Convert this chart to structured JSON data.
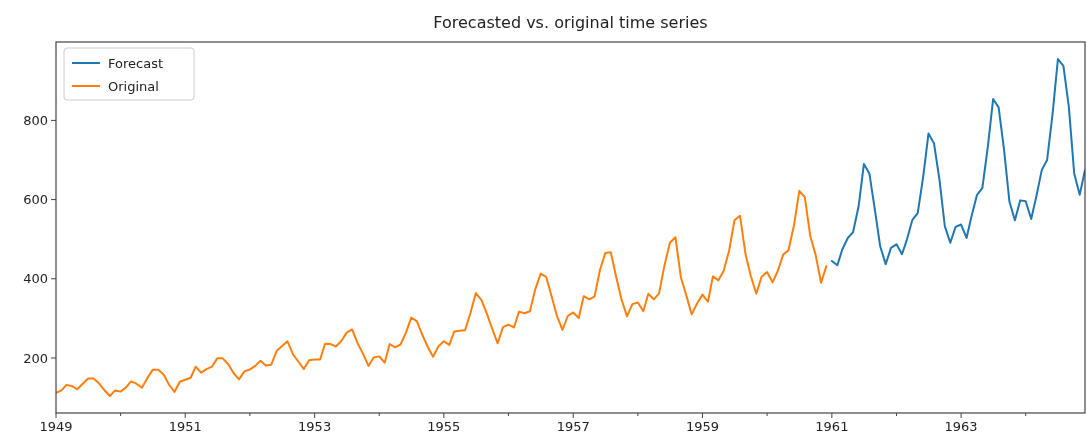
{
  "chart_data": {
    "type": "line",
    "title": "Forecasted vs. original time series",
    "xlim": [
      "1949-01",
      "1964-12"
    ],
    "ylim": [
      61,
      998
    ],
    "yticks": [
      200,
      400,
      600,
      800
    ],
    "xticks": [
      {
        "value": "1949",
        "label": "1949"
      },
      {
        "value": "1950",
        "label": null
      },
      {
        "value": "1951",
        "label": "1951"
      },
      {
        "value": "1952",
        "label": null
      },
      {
        "value": "1953",
        "label": "1953"
      },
      {
        "value": "1954",
        "label": null
      },
      {
        "value": "1955",
        "label": "1955"
      },
      {
        "value": "1956",
        "label": null
      },
      {
        "value": "1957",
        "label": "1957"
      },
      {
        "value": "1958",
        "label": null
      },
      {
        "value": "1959",
        "label": "1959"
      },
      {
        "value": "1960",
        "label": null
      },
      {
        "value": "1961",
        "label": "1961"
      },
      {
        "value": "1962",
        "label": null
      },
      {
        "value": "1963",
        "label": "1963"
      },
      {
        "value": "1964",
        "label": null
      }
    ],
    "legend": "top left",
    "grid": false,
    "series": [
      {
        "name": "Forecast",
        "color": "#1f77b4",
        "x": [
          "1961-01",
          "1961-02",
          "1961-03",
          "1961-04",
          "1961-05",
          "1961-06",
          "1961-07",
          "1961-08",
          "1961-09",
          "1961-10",
          "1961-11",
          "1961-12",
          "1962-01",
          "1962-02",
          "1962-03",
          "1962-04",
          "1962-05",
          "1962-06",
          "1962-07",
          "1962-08",
          "1962-09",
          "1962-10",
          "1962-11",
          "1962-12",
          "1963-01",
          "1963-02",
          "1963-03",
          "1963-04",
          "1963-05",
          "1963-06",
          "1963-07",
          "1963-08",
          "1963-09",
          "1963-10",
          "1963-11",
          "1963-12",
          "1964-01",
          "1964-02",
          "1964-03",
          "1964-04",
          "1964-05",
          "1964-06",
          "1964-07",
          "1964-08",
          "1964-09",
          "1964-10",
          "1964-11",
          "1964-12"
        ],
        "values": [
          445,
          434,
          474,
          503,
          518,
          583,
          690,
          666,
          574,
          482,
          437,
          478,
          487,
          462,
          499,
          549,
          566,
          658,
          767,
          742,
          650,
          533,
          491,
          531,
          537,
          503,
          558,
          612,
          629,
          733,
          854,
          833,
          725,
          595,
          548,
          598,
          596,
          551,
          608,
          675,
          700,
          817,
          955,
          938,
          833,
          666,
          612,
          675
        ]
      },
      {
        "name": "Original",
        "color": "#ff7f0e",
        "x": [
          "1949-01",
          "1949-02",
          "1949-03",
          "1949-04",
          "1949-05",
          "1949-06",
          "1949-07",
          "1949-08",
          "1949-09",
          "1949-10",
          "1949-11",
          "1949-12",
          "1950-01",
          "1950-02",
          "1950-03",
          "1950-04",
          "1950-05",
          "1950-06",
          "1950-07",
          "1950-08",
          "1950-09",
          "1950-10",
          "1950-11",
          "1950-12",
          "1951-01",
          "1951-02",
          "1951-03",
          "1951-04",
          "1951-05",
          "1951-06",
          "1951-07",
          "1951-08",
          "1951-09",
          "1951-10",
          "1951-11",
          "1951-12",
          "1952-01",
          "1952-02",
          "1952-03",
          "1952-04",
          "1952-05",
          "1952-06",
          "1952-07",
          "1952-08",
          "1952-09",
          "1952-10",
          "1952-11",
          "1952-12",
          "1953-01",
          "1953-02",
          "1953-03",
          "1953-04",
          "1953-05",
          "1953-06",
          "1953-07",
          "1953-08",
          "1953-09",
          "1953-10",
          "1953-11",
          "1953-12",
          "1954-01",
          "1954-02",
          "1954-03",
          "1954-04",
          "1954-05",
          "1954-06",
          "1954-07",
          "1954-08",
          "1954-09",
          "1954-10",
          "1954-11",
          "1954-12",
          "1955-01",
          "1955-02",
          "1955-03",
          "1955-04",
          "1955-05",
          "1955-06",
          "1955-07",
          "1955-08",
          "1955-09",
          "1955-10",
          "1955-11",
          "1955-12",
          "1956-01",
          "1956-02",
          "1956-03",
          "1956-04",
          "1956-05",
          "1956-06",
          "1956-07",
          "1956-08",
          "1956-09",
          "1956-10",
          "1956-11",
          "1956-12",
          "1957-01",
          "1957-02",
          "1957-03",
          "1957-04",
          "1957-05",
          "1957-06",
          "1957-07",
          "1957-08",
          "1957-09",
          "1957-10",
          "1957-11",
          "1957-12",
          "1958-01",
          "1958-02",
          "1958-03",
          "1958-04",
          "1958-05",
          "1958-06",
          "1958-07",
          "1958-08",
          "1958-09",
          "1958-10",
          "1958-11",
          "1958-12",
          "1959-01",
          "1959-02",
          "1959-03",
          "1959-04",
          "1959-05",
          "1959-06",
          "1959-07",
          "1959-08",
          "1959-09",
          "1959-10",
          "1959-11",
          "1959-12",
          "1960-01",
          "1960-02",
          "1960-03",
          "1960-04",
          "1960-05",
          "1960-06",
          "1960-07",
          "1960-08",
          "1960-09",
          "1960-10",
          "1960-11",
          "1960-12"
        ],
        "values": [
          112,
          118,
          132,
          129,
          121,
          135,
          148,
          148,
          136,
          119,
          104,
          118,
          115,
          126,
          141,
          135,
          125,
          149,
          170,
          170,
          158,
          133,
          114,
          140,
          145,
          150,
          178,
          163,
          172,
          178,
          199,
          199,
          184,
          162,
          146,
          166,
          171,
          180,
          193,
          181,
          183,
          218,
          230,
          242,
          209,
          191,
          172,
          194,
          196,
          196,
          236,
          235,
          229,
          243,
          264,
          272,
          237,
          211,
          180,
          201,
          204,
          188,
          235,
          227,
          234,
          264,
          302,
          293,
          259,
          229,
          203,
          229,
          242,
          233,
          267,
          269,
          270,
          315,
          364,
          347,
          312,
          274,
          237,
          278,
          284,
          277,
          317,
          313,
          318,
          374,
          413,
          405,
          355,
          306,
          271,
          306,
          315,
          301,
          356,
          348,
          355,
          422,
          465,
          467,
          404,
          347,
          305,
          336,
          340,
          318,
          362,
          348,
          363,
          435,
          491,
          505,
          404,
          359,
          310,
          337,
          360,
          342,
          406,
          396,
          420,
          472,
          548,
          559,
          463,
          407,
          362,
          405,
          417,
          391,
          419,
          461,
          472,
          535,
          622,
          606,
          508,
          461,
          390,
          432
        ]
      }
    ]
  }
}
